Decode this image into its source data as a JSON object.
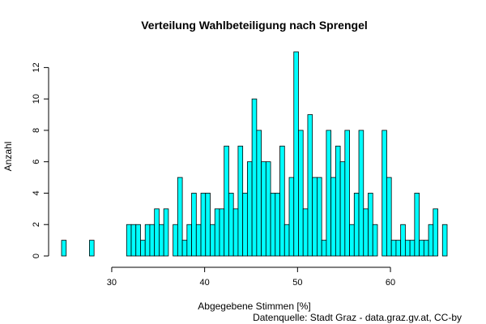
{
  "chart_data": {
    "type": "bar",
    "title": "Verteilung Wahlbeteiligung nach Sprengel",
    "xlabel": "Abgegebene Stimmen [%]",
    "ylabel": "Anzahl",
    "caption": "Datenquelle: Stadt Graz - data.graz.gv.at, CC-by",
    "xlim": [
      24.6,
      66.1
    ],
    "ylim": [
      0,
      13
    ],
    "xticks": [
      30,
      40,
      50,
      60
    ],
    "yticks": [
      0,
      2,
      4,
      6,
      8,
      10,
      12
    ],
    "bin_start": 24.6,
    "bin_width": 0.5,
    "counts": [
      1,
      0,
      0,
      0,
      0,
      0,
      1,
      0,
      0,
      0,
      0,
      0,
      0,
      0,
      2,
      2,
      2,
      1,
      2,
      2,
      3,
      2,
      3,
      0,
      2,
      5,
      1,
      2,
      4,
      2,
      4,
      4,
      2,
      3,
      3,
      7,
      4,
      3,
      7,
      4,
      6,
      10,
      8,
      6,
      6,
      4,
      4,
      7,
      2,
      5,
      13,
      8,
      3,
      9,
      5,
      5,
      1,
      8,
      5,
      7,
      6,
      8,
      2,
      4,
      8,
      3,
      4,
      2,
      0,
      8,
      5,
      1,
      1,
      2,
      1,
      1,
      4,
      1,
      1,
      2,
      3,
      0,
      2
    ],
    "bar_fill": "#00FFFF",
    "bar_stroke": "#000000"
  }
}
